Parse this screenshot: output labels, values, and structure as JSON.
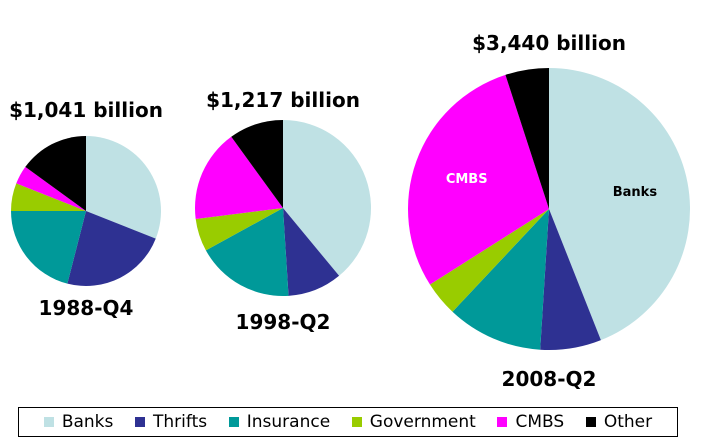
{
  "chart_data": {
    "type": "pie",
    "title": "",
    "series_names": [
      "Banks",
      "Thrifts",
      "Insurance",
      "Government",
      "CMBS",
      "Other"
    ],
    "colors": {
      "Banks": "#bfe1e4",
      "Thrifts": "#2e3192",
      "Insurance": "#009999",
      "Government": "#99cc00",
      "CMBS": "#ff00ff",
      "Other": "#000000"
    },
    "pies": [
      {
        "period": "1988-Q4",
        "total_label": "$1,041 billion",
        "slices": [
          {
            "name": "Banks",
            "value": 31
          },
          {
            "name": "Thrifts",
            "value": 23
          },
          {
            "name": "Insurance",
            "value": 21
          },
          {
            "name": "Government",
            "value": 6
          },
          {
            "name": "CMBS",
            "value": 4
          },
          {
            "name": "Other",
            "value": 15
          }
        ]
      },
      {
        "period": "1998-Q2",
        "total_label": "$1,217 billion",
        "slices": [
          {
            "name": "Banks",
            "value": 39
          },
          {
            "name": "Thrifts",
            "value": 10
          },
          {
            "name": "Insurance",
            "value": 18
          },
          {
            "name": "Government",
            "value": 6
          },
          {
            "name": "CMBS",
            "value": 17
          },
          {
            "name": "Other",
            "value": 10
          }
        ]
      },
      {
        "period": "2008-Q2",
        "total_label": "$3,440 billion",
        "slices": [
          {
            "name": "Banks",
            "value": 44
          },
          {
            "name": "Thrifts",
            "value": 7
          },
          {
            "name": "Insurance",
            "value": 11
          },
          {
            "name": "Government",
            "value": 4
          },
          {
            "name": "CMBS",
            "value": 29
          },
          {
            "name": "Other",
            "value": 5
          }
        ],
        "slice_labels": {
          "Banks": "Banks",
          "CMBS": "CMBS"
        }
      }
    ],
    "legend": {
      "placement": "bottom",
      "items": [
        "Banks",
        "Thrifts",
        "Insurance",
        "Government",
        "CMBS",
        "Other"
      ]
    }
  }
}
